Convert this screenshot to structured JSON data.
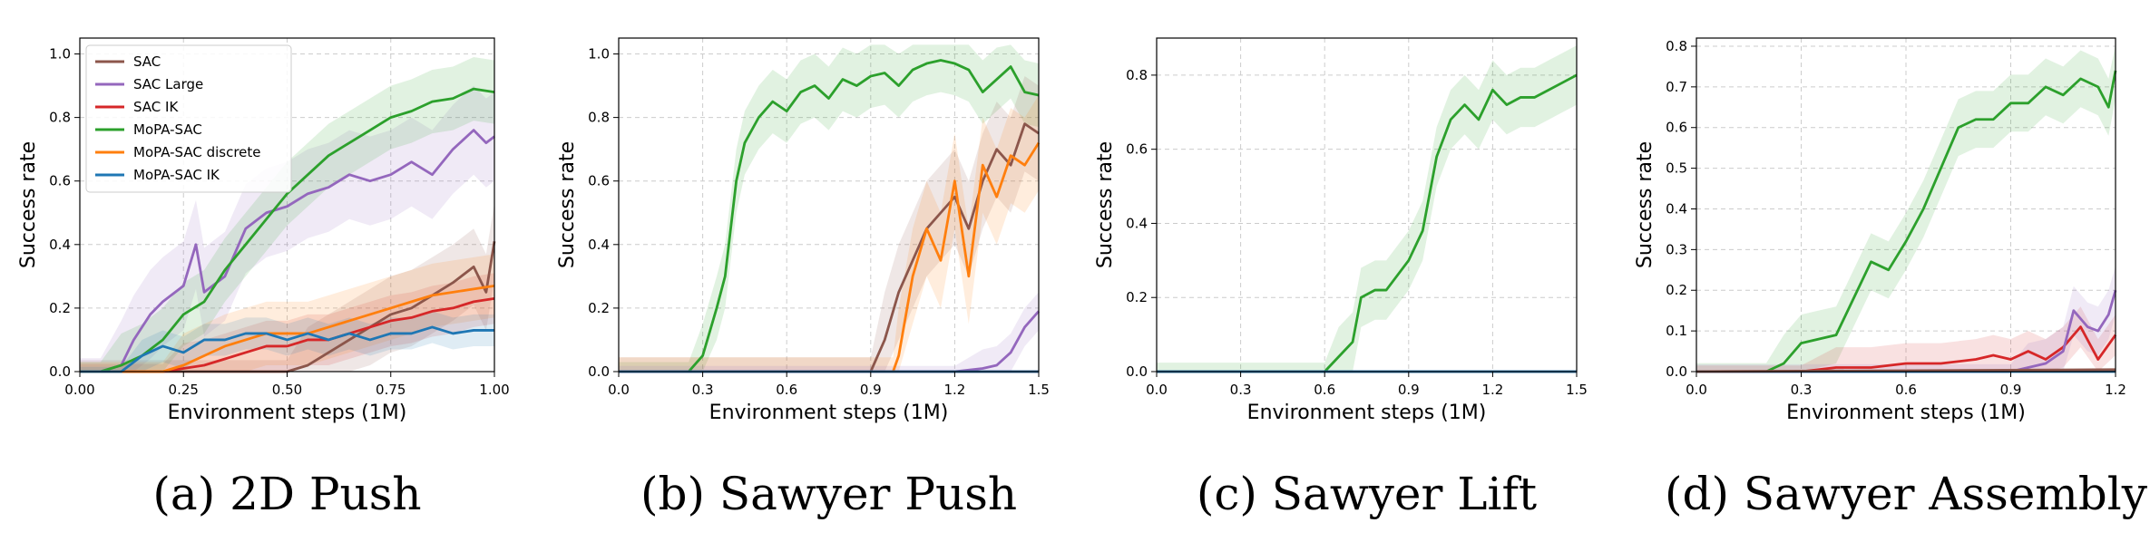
{
  "legend": {
    "entries": [
      {
        "label": "SAC",
        "color": "#8c564b"
      },
      {
        "label": "SAC Large",
        "color": "#9467bd"
      },
      {
        "label": "SAC IK",
        "color": "#d62728"
      },
      {
        "label": "MoPA-SAC",
        "color": "#2ca02c"
      },
      {
        "label": "MoPA-SAC discrete",
        "color": "#ff7f0e"
      },
      {
        "label": "MoPA-SAC IK",
        "color": "#1f77b4"
      }
    ]
  },
  "chart_data": [
    {
      "type": "line",
      "caption": "(a) 2D Push",
      "xlabel": "Environment steps (1M)",
      "ylabel": "Success rate",
      "xlim": [
        0,
        1.0
      ],
      "ylim": [
        0,
        1.05
      ],
      "xticks": [
        0,
        0.25,
        0.5,
        0.75,
        1.0
      ],
      "xtick_labels": [
        "0.00",
        "0.25",
        "0.50",
        "0.75",
        "1.00"
      ],
      "yticks": [
        0,
        0.2,
        0.4,
        0.6,
        0.8,
        1.0
      ],
      "ytick_labels": [
        "0.0",
        "0.2",
        "0.4",
        "0.6",
        "0.8",
        "1.0"
      ],
      "grid": true,
      "legend_position": "top-left",
      "series": [
        {
          "name": "SAC",
          "color": "#8c564b",
          "x": [
            0,
            0.1,
            0.2,
            0.3,
            0.4,
            0.45,
            0.5,
            0.55,
            0.6,
            0.65,
            0.7,
            0.75,
            0.8,
            0.85,
            0.9,
            0.95,
            0.98,
            1.0
          ],
          "y": [
            0,
            0,
            0,
            0,
            0,
            0,
            0,
            0.02,
            0.06,
            0.1,
            0.14,
            0.18,
            0.2,
            0.24,
            0.28,
            0.33,
            0.25,
            0.41
          ],
          "band": 0.12
        },
        {
          "name": "SAC Large",
          "color": "#9467bd",
          "x": [
            0,
            0.05,
            0.1,
            0.13,
            0.17,
            0.2,
            0.25,
            0.28,
            0.3,
            0.35,
            0.4,
            0.45,
            0.5,
            0.55,
            0.6,
            0.65,
            0.7,
            0.75,
            0.8,
            0.85,
            0.9,
            0.95,
            0.98,
            1.0
          ],
          "y": [
            0,
            0,
            0.02,
            0.1,
            0.18,
            0.22,
            0.27,
            0.4,
            0.25,
            0.3,
            0.45,
            0.5,
            0.52,
            0.56,
            0.58,
            0.62,
            0.6,
            0.62,
            0.66,
            0.62,
            0.7,
            0.76,
            0.72,
            0.74
          ],
          "band": 0.14
        },
        {
          "name": "SAC IK",
          "color": "#d62728",
          "x": [
            0,
            0.1,
            0.2,
            0.25,
            0.3,
            0.35,
            0.4,
            0.45,
            0.5,
            0.55,
            0.6,
            0.65,
            0.7,
            0.75,
            0.8,
            0.85,
            0.9,
            0.95,
            1.0
          ],
          "y": [
            0,
            0,
            0,
            0.01,
            0.02,
            0.04,
            0.06,
            0.08,
            0.08,
            0.1,
            0.1,
            0.12,
            0.14,
            0.16,
            0.17,
            0.19,
            0.2,
            0.22,
            0.23
          ],
          "band": 0.08
        },
        {
          "name": "MoPA-SAC",
          "color": "#2ca02c",
          "x": [
            0,
            0.05,
            0.1,
            0.15,
            0.2,
            0.25,
            0.3,
            0.35,
            0.4,
            0.45,
            0.5,
            0.55,
            0.6,
            0.65,
            0.7,
            0.75,
            0.8,
            0.85,
            0.9,
            0.95,
            1.0
          ],
          "y": [
            0,
            0,
            0.02,
            0.05,
            0.1,
            0.18,
            0.22,
            0.32,
            0.4,
            0.48,
            0.56,
            0.62,
            0.68,
            0.72,
            0.76,
            0.8,
            0.82,
            0.85,
            0.86,
            0.89,
            0.88
          ],
          "band": 0.1
        },
        {
          "name": "MoPA-SAC discrete",
          "color": "#ff7f0e",
          "x": [
            0,
            0.1,
            0.2,
            0.25,
            0.3,
            0.35,
            0.4,
            0.45,
            0.5,
            0.55,
            0.6,
            0.65,
            0.7,
            0.75,
            0.8,
            0.85,
            0.9,
            0.95,
            1.0
          ],
          "y": [
            0,
            0,
            0,
            0.02,
            0.05,
            0.08,
            0.1,
            0.12,
            0.12,
            0.12,
            0.14,
            0.16,
            0.18,
            0.2,
            0.22,
            0.24,
            0.25,
            0.26,
            0.27
          ],
          "band": 0.1
        },
        {
          "name": "MoPA-SAC IK",
          "color": "#1f77b4",
          "x": [
            0,
            0.1,
            0.15,
            0.2,
            0.25,
            0.3,
            0.35,
            0.4,
            0.45,
            0.5,
            0.55,
            0.6,
            0.65,
            0.7,
            0.75,
            0.8,
            0.85,
            0.9,
            0.95,
            1.0
          ],
          "y": [
            0,
            0,
            0.05,
            0.08,
            0.06,
            0.1,
            0.1,
            0.12,
            0.12,
            0.1,
            0.12,
            0.1,
            0.12,
            0.1,
            0.12,
            0.12,
            0.14,
            0.12,
            0.13,
            0.13
          ],
          "band": 0.05
        }
      ]
    },
    {
      "type": "line",
      "caption": "(b) Sawyer Push",
      "xlabel": "Environment steps (1M)",
      "ylabel": "Success rate",
      "xlim": [
        0,
        1.5
      ],
      "ylim": [
        0,
        1.05
      ],
      "xticks": [
        0,
        0.3,
        0.6,
        0.9,
        1.2,
        1.5
      ],
      "xtick_labels": [
        "0.0",
        "0.3",
        "0.6",
        "0.9",
        "1.2",
        "1.5"
      ],
      "yticks": [
        0,
        0.2,
        0.4,
        0.6,
        0.8,
        1.0
      ],
      "ytick_labels": [
        "0.0",
        "0.2",
        "0.4",
        "0.6",
        "0.8",
        "1.0"
      ],
      "grid": true,
      "series": [
        {
          "name": "MoPA-SAC",
          "color": "#2ca02c",
          "x": [
            0,
            0.25,
            0.3,
            0.35,
            0.38,
            0.42,
            0.45,
            0.5,
            0.55,
            0.6,
            0.65,
            0.7,
            0.75,
            0.8,
            0.85,
            0.9,
            0.95,
            1.0,
            1.05,
            1.1,
            1.15,
            1.2,
            1.25,
            1.3,
            1.35,
            1.4,
            1.45,
            1.5
          ],
          "y": [
            0,
            0,
            0.05,
            0.2,
            0.3,
            0.6,
            0.72,
            0.8,
            0.85,
            0.82,
            0.88,
            0.9,
            0.86,
            0.92,
            0.9,
            0.93,
            0.94,
            0.9,
            0.95,
            0.97,
            0.98,
            0.97,
            0.95,
            0.88,
            0.92,
            0.96,
            0.88,
            0.87
          ],
          "band": 0.1
        },
        {
          "name": "SAC",
          "color": "#8c564b",
          "x": [
            0,
            0.9,
            0.95,
            1.0,
            1.05,
            1.1,
            1.15,
            1.2,
            1.25,
            1.3,
            1.35,
            1.4,
            1.45,
            1.5
          ],
          "y": [
            0,
            0,
            0.1,
            0.25,
            0.35,
            0.45,
            0.5,
            0.55,
            0.45,
            0.6,
            0.7,
            0.65,
            0.78,
            0.75
          ],
          "band": 0.15
        },
        {
          "name": "MoPA-SAC discrete",
          "color": "#ff7f0e",
          "x": [
            0,
            0.98,
            1.0,
            1.05,
            1.1,
            1.15,
            1.2,
            1.25,
            1.3,
            1.35,
            1.4,
            1.45,
            1.5
          ],
          "y": [
            0,
            0,
            0.05,
            0.3,
            0.45,
            0.35,
            0.6,
            0.3,
            0.65,
            0.55,
            0.68,
            0.65,
            0.72
          ],
          "band": 0.15
        },
        {
          "name": "SAC Large",
          "color": "#9467bd",
          "x": [
            0,
            1.2,
            1.3,
            1.35,
            1.4,
            1.45,
            1.5
          ],
          "y": [
            0,
            0,
            0.01,
            0.02,
            0.06,
            0.14,
            0.19
          ],
          "band": 0.06
        },
        {
          "name": "SAC IK",
          "color": "#d62728",
          "x": [
            0,
            1.5
          ],
          "y": [
            0,
            0
          ],
          "band": 0
        },
        {
          "name": "MoPA-SAC IK",
          "color": "#1f77b4",
          "x": [
            0,
            1.5
          ],
          "y": [
            0,
            0
          ],
          "band": 0
        }
      ]
    },
    {
      "type": "line",
      "caption": "(c) Sawyer Lift",
      "xlabel": "Environment steps (1M)",
      "ylabel": "Success rate",
      "xlim": [
        0,
        1.5
      ],
      "ylim": [
        0,
        0.9
      ],
      "xticks": [
        0,
        0.3,
        0.6,
        0.9,
        1.2,
        1.5
      ],
      "xtick_labels": [
        "0.0",
        "0.3",
        "0.6",
        "0.9",
        "1.2",
        "1.5"
      ],
      "yticks": [
        0,
        0.2,
        0.4,
        0.6,
        0.8
      ],
      "ytick_labels": [
        "0.0",
        "0.2",
        "0.4",
        "0.6",
        "0.8"
      ],
      "grid": true,
      "series": [
        {
          "name": "MoPA-SAC",
          "color": "#2ca02c",
          "x": [
            0,
            0.6,
            0.65,
            0.7,
            0.73,
            0.78,
            0.82,
            0.86,
            0.9,
            0.95,
            1.0,
            1.05,
            1.1,
            1.15,
            1.2,
            1.25,
            1.3,
            1.35,
            1.4,
            1.45,
            1.5
          ],
          "y": [
            0,
            0,
            0.04,
            0.08,
            0.2,
            0.22,
            0.22,
            0.26,
            0.3,
            0.38,
            0.58,
            0.68,
            0.72,
            0.68,
            0.76,
            0.72,
            0.74,
            0.74,
            0.76,
            0.78,
            0.8
          ],
          "band": 0.08
        },
        {
          "name": "SAC",
          "color": "#8c564b",
          "x": [
            0,
            1.5
          ],
          "y": [
            0,
            0
          ],
          "band": 0
        },
        {
          "name": "MoPA-SAC IK",
          "color": "#1f77b4",
          "x": [
            0,
            1.5
          ],
          "y": [
            0,
            0
          ],
          "band": 0
        }
      ]
    },
    {
      "type": "line",
      "caption": "(d) Sawyer Assembly",
      "xlabel": "Environment steps (1M)",
      "ylabel": "Success rate",
      "xlim": [
        0,
        1.2
      ],
      "ylim": [
        0,
        0.82
      ],
      "xticks": [
        0,
        0.3,
        0.6,
        0.9,
        1.2
      ],
      "xtick_labels": [
        "0.0",
        "0.3",
        "0.6",
        "0.9",
        "1.2"
      ],
      "yticks": [
        0,
        0.1,
        0.2,
        0.3,
        0.4,
        0.5,
        0.6,
        0.7,
        0.8
      ],
      "ytick_labels": [
        "0.0",
        "0.1",
        "0.2",
        "0.3",
        "0.4",
        "0.5",
        "0.6",
        "0.7",
        "0.8"
      ],
      "grid": true,
      "series": [
        {
          "name": "MoPA-SAC",
          "color": "#2ca02c",
          "x": [
            0,
            0.2,
            0.25,
            0.3,
            0.35,
            0.4,
            0.45,
            0.5,
            0.55,
            0.6,
            0.65,
            0.7,
            0.75,
            0.8,
            0.85,
            0.9,
            0.95,
            1.0,
            1.05,
            1.1,
            1.15,
            1.18,
            1.2
          ],
          "y": [
            0,
            0,
            0.02,
            0.07,
            0.08,
            0.09,
            0.18,
            0.27,
            0.25,
            0.32,
            0.4,
            0.5,
            0.6,
            0.62,
            0.62,
            0.66,
            0.66,
            0.7,
            0.68,
            0.72,
            0.7,
            0.65,
            0.74
          ],
          "band": 0.07
        },
        {
          "name": "SAC IK",
          "color": "#d62728",
          "x": [
            0,
            0.3,
            0.4,
            0.5,
            0.6,
            0.7,
            0.8,
            0.85,
            0.9,
            0.95,
            1.0,
            1.05,
            1.1,
            1.15,
            1.2
          ],
          "y": [
            0,
            0,
            0.01,
            0.01,
            0.02,
            0.02,
            0.03,
            0.04,
            0.03,
            0.05,
            0.03,
            0.06,
            0.11,
            0.03,
            0.09
          ],
          "band": 0.05
        },
        {
          "name": "SAC Large",
          "color": "#9467bd",
          "x": [
            0,
            0.9,
            0.95,
            1.0,
            1.05,
            1.08,
            1.12,
            1.15,
            1.18,
            1.2
          ],
          "y": [
            0,
            0,
            0.01,
            0.02,
            0.05,
            0.15,
            0.11,
            0.1,
            0.14,
            0.2
          ],
          "band": 0.06
        },
        {
          "name": "MoPA-SAC IK",
          "color": "#1f77b4",
          "x": [
            0,
            1.2
          ],
          "y": [
            0,
            0
          ],
          "band": 0
        },
        {
          "name": "SAC",
          "color": "#8c564b",
          "x": [
            0,
            1.2
          ],
          "y": [
            0,
            0.005
          ],
          "band": 0
        }
      ]
    }
  ]
}
